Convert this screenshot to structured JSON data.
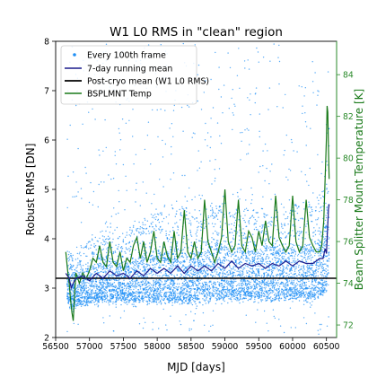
{
  "chart_data": {
    "type": "scatter",
    "title": "W1 L0 RMS in \"clean\" region",
    "xlabel": "MJD [days]",
    "ylabel": "Robust RMS [DN]",
    "y2label": "Beam Splitter Mount Temperature [K]",
    "xlim": [
      56500,
      60650
    ],
    "ylim": [
      2,
      8
    ],
    "y2lim": [
      71.4,
      85.6
    ],
    "x_ticks": [
      56500,
      57000,
      57500,
      58000,
      58500,
      59000,
      59500,
      60000,
      60500
    ],
    "y_ticks": [
      2,
      3,
      4,
      5,
      6,
      7,
      8
    ],
    "y2_ticks": [
      72,
      74,
      76,
      78,
      80,
      82,
      84
    ],
    "grid": false,
    "legend_position": "top-left",
    "colors": {
      "scatter": "#1f8ff5",
      "running_mean": "#1a1a8c",
      "post_cryo_mean": "#000000",
      "temperature": "#1a7a1a",
      "y2_axis": "#2a8a2a"
    },
    "series": [
      {
        "name": "Every 100th frame",
        "kind": "scatter",
        "band_x": [
          56670,
          56700,
          56760,
          56900,
          57100,
          57300,
          57500,
          57700,
          57900,
          58100,
          58300,
          58500,
          58700,
          58900,
          59100,
          59300,
          59500,
          59700,
          59900,
          60100,
          60300,
          60400,
          60450,
          60500,
          60520,
          60540
        ],
        "band_low": [
          2.8,
          2.7,
          2.65,
          2.7,
          2.75,
          2.75,
          2.75,
          2.75,
          2.75,
          2.75,
          2.75,
          2.75,
          2.8,
          2.8,
          2.8,
          2.8,
          2.8,
          2.8,
          2.8,
          2.8,
          2.8,
          2.85,
          2.9,
          3.0,
          3.2,
          3.5
        ],
        "band_high": [
          3.9,
          3.9,
          3.6,
          3.9,
          4.0,
          4.3,
          4.1,
          4.3,
          4.5,
          4.6,
          4.7,
          4.6,
          4.5,
          4.9,
          4.6,
          4.7,
          4.5,
          4.7,
          4.6,
          4.7,
          4.8,
          4.9,
          5.1,
          5.6,
          6.3,
          7.0
        ],
        "sparse_ylim": [
          2.1,
          8.0
        ]
      },
      {
        "name": "7-day running mean",
        "kind": "line",
        "x": [
          56650,
          56700,
          56730,
          56760,
          56800,
          56900,
          57000,
          57100,
          57200,
          57300,
          57400,
          57500,
          57600,
          57700,
          57800,
          57900,
          58000,
          58100,
          58200,
          58300,
          58400,
          58500,
          58600,
          58700,
          58800,
          58900,
          59000,
          59100,
          59200,
          59300,
          59400,
          59500,
          59600,
          59700,
          59800,
          59900,
          60000,
          60100,
          60200,
          60300,
          60400,
          60450,
          60480,
          60500,
          60510,
          60520,
          60530,
          60540
        ],
        "y": [
          3.3,
          3.2,
          3.0,
          3.1,
          3.2,
          3.25,
          3.15,
          3.3,
          3.2,
          3.35,
          3.25,
          3.3,
          3.2,
          3.35,
          3.25,
          3.4,
          3.3,
          3.4,
          3.3,
          3.45,
          3.3,
          3.45,
          3.35,
          3.45,
          3.35,
          3.5,
          3.4,
          3.55,
          3.4,
          3.5,
          3.45,
          3.5,
          3.4,
          3.5,
          3.45,
          3.55,
          3.45,
          3.55,
          3.5,
          3.5,
          3.6,
          3.6,
          3.8,
          3.7,
          4.0,
          4.3,
          4.6,
          4.7
        ]
      },
      {
        "name": "Post-cryo mean (W1 L0 RMS)",
        "kind": "hline",
        "y": 3.2
      },
      {
        "name": "BSPLMNT Temp",
        "kind": "line",
        "axis": "y2",
        "x": [
          56650,
          56680,
          56700,
          56720,
          56740,
          56760,
          56780,
          56800,
          56850,
          56900,
          56950,
          57000,
          57050,
          57100,
          57150,
          57200,
          57250,
          57300,
          57350,
          57400,
          57450,
          57500,
          57550,
          57600,
          57650,
          57700,
          57750,
          57800,
          57850,
          57900,
          57950,
          58000,
          58050,
          58100,
          58150,
          58200,
          58250,
          58300,
          58350,
          58400,
          58450,
          58500,
          58550,
          58600,
          58650,
          58700,
          58750,
          58800,
          58850,
          58900,
          58950,
          59000,
          59050,
          59100,
          59150,
          59200,
          59250,
          59300,
          59350,
          59400,
          59450,
          59500,
          59550,
          59600,
          59650,
          59700,
          59750,
          59800,
          59850,
          59900,
          59950,
          60000,
          60050,
          60100,
          60150,
          60200,
          60250,
          60300,
          60350,
          60400,
          60430,
          60460,
          60480,
          60500,
          60510,
          60520,
          60530,
          60540
        ],
        "y": [
          75.5,
          74.5,
          74.0,
          73.2,
          72.6,
          72.2,
          73.5,
          74.5,
          74.0,
          74.5,
          74.2,
          74.6,
          75.2,
          75.0,
          75.8,
          75.0,
          74.8,
          76.0,
          75.0,
          74.8,
          75.5,
          74.6,
          75.2,
          75.0,
          75.8,
          76.2,
          75.2,
          76.0,
          75.0,
          75.5,
          76.5,
          75.2,
          75.0,
          76.0,
          75.3,
          75.0,
          76.5,
          75.2,
          75.5,
          77.5,
          75.5,
          75.2,
          76.0,
          75.2,
          75.5,
          78.0,
          76.0,
          75.5,
          75.0,
          75.5,
          76.2,
          78.5,
          76.0,
          75.5,
          75.8,
          78.0,
          75.8,
          75.5,
          76.5,
          76.2,
          75.5,
          76.5,
          75.8,
          77.0,
          76.0,
          75.8,
          78.2,
          76.2,
          75.8,
          75.5,
          75.8,
          78.2,
          76.0,
          75.5,
          75.8,
          78.0,
          76.2,
          75.8,
          75.5,
          75.5,
          75.8,
          77.0,
          79.0,
          81.0,
          82.5,
          82.2,
          80.5,
          79.0
        ]
      }
    ]
  }
}
